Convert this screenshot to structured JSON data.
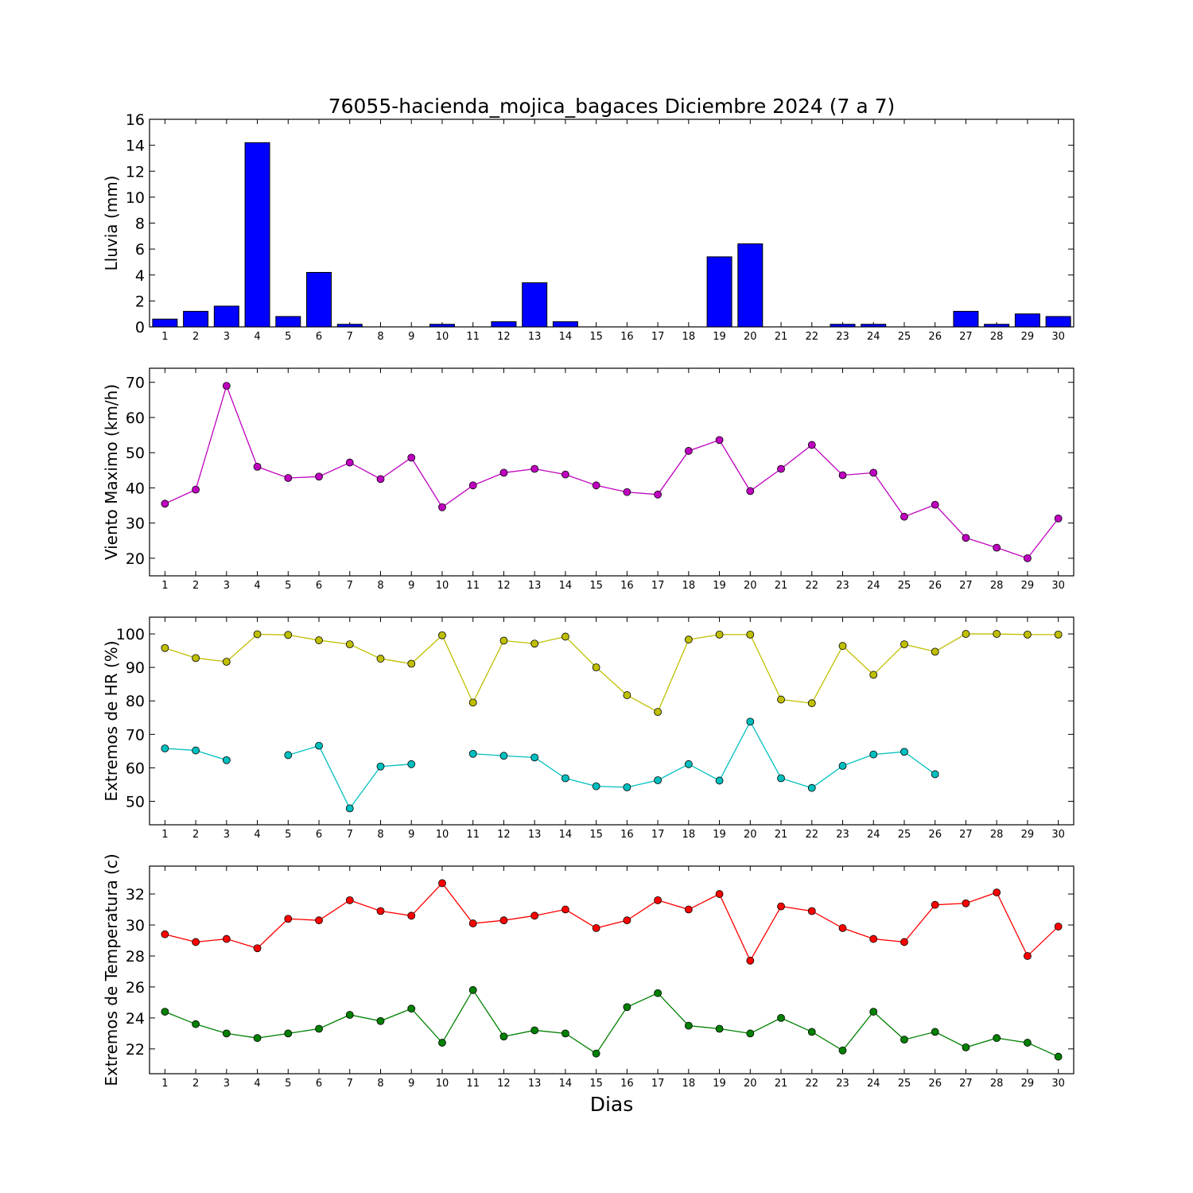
{
  "chart_data": {
    "title": "76055-hacienda_mojica_bagaces Diciembre 2024  (7 a 7)",
    "xlabel": "Dias",
    "x": [
      1,
      2,
      3,
      4,
      5,
      6,
      7,
      8,
      9,
      10,
      11,
      12,
      13,
      14,
      15,
      16,
      17,
      18,
      19,
      20,
      21,
      22,
      23,
      24,
      25,
      26,
      27,
      28,
      29,
      30
    ],
    "panels": [
      {
        "type": "bar",
        "ylabel": "Lluvia (mm)",
        "ylim": [
          0,
          16
        ],
        "yticks": [
          0,
          2,
          4,
          6,
          8,
          10,
          12,
          14,
          16
        ],
        "series": [
          {
            "color": "#0000ff",
            "values": [
              0.6,
              1.2,
              1.6,
              14.2,
              0.8,
              4.2,
              0.2,
              0,
              0,
              0.2,
              0,
              0.4,
              3.4,
              0.4,
              0,
              0,
              0,
              0,
              5.4,
              6.4,
              0,
              0,
              0.2,
              0.2,
              0,
              0,
              1.2,
              0.2,
              1.0,
              0.8
            ]
          }
        ]
      },
      {
        "type": "line",
        "ylabel": "Viento Maximo (km/h)",
        "ylim": [
          15,
          74
        ],
        "yticks": [
          20,
          30,
          40,
          50,
          60,
          70
        ],
        "series": [
          {
            "color": "#bf00bf",
            "values": [
              35.5,
              39.5,
              69,
              46,
              42.8,
              43.2,
              47.2,
              42.5,
              48.6,
              34.5,
              40.7,
              44.3,
              45.4,
              43.8,
              40.7,
              38.8,
              38.1,
              50.5,
              53.6,
              39.1,
              45.4,
              52.2,
              43.6,
              44.3,
              31.8,
              35.2,
              25.8,
              23,
              20,
              31.3
            ]
          }
        ]
      },
      {
        "type": "line",
        "ylabel": "Extremos de HR (%)",
        "ylim": [
          43,
          105
        ],
        "yticks": [
          50,
          60,
          70,
          80,
          90,
          100
        ],
        "series": [
          {
            "color": "#bfbf00",
            "values": [
              95.8,
              92.8,
              91.7,
              99.9,
              99.7,
              98.1,
              96.9,
              92.6,
              91.1,
              99.6,
              79.5,
              98.0,
              97.1,
              99.2,
              90.0,
              81.7,
              76.7,
              98.3,
              99.8,
              99.8,
              80.4,
              79.3,
              96.4,
              87.8,
              96.9,
              94.7,
              100,
              100,
              99.8,
              99.8
            ]
          },
          {
            "color": "#00bfbf",
            "values": [
              65.8,
              65.2,
              62.3,
              null,
              63.8,
              66.6,
              47.9,
              60.4,
              61.1,
              null,
              64.2,
              63.6,
              63.1,
              56.9,
              54.5,
              54.2,
              56.3,
              61.1,
              56.2,
              73.8,
              56.9,
              54.0,
              60.6,
              64.0,
              64.8,
              58.1,
              null,
              null,
              null,
              null
            ]
          }
        ]
      },
      {
        "type": "line",
        "ylabel": "Extremos de Temperatura (c)",
        "ylim": [
          20.4,
          33.8
        ],
        "yticks": [
          22,
          24,
          26,
          28,
          30,
          32
        ],
        "series": [
          {
            "color": "#ff0000",
            "values": [
              29.4,
              28.9,
              29.1,
              28.5,
              30.4,
              30.3,
              31.6,
              30.9,
              30.6,
              32.7,
              30.1,
              30.3,
              30.6,
              31.0,
              29.8,
              30.3,
              31.6,
              31.0,
              32.0,
              27.7,
              31.2,
              30.9,
              29.8,
              29.1,
              28.9,
              31.3,
              31.4,
              32.1,
              28.0,
              29.9
            ]
          },
          {
            "color": "#008000",
            "values": [
              24.4,
              23.6,
              23.0,
              22.7,
              23.0,
              23.3,
              24.2,
              23.8,
              24.6,
              22.4,
              25.8,
              22.8,
              23.2,
              23.0,
              21.7,
              24.7,
              25.6,
              23.5,
              23.3,
              23.0,
              24.0,
              23.1,
              21.9,
              24.4,
              22.6,
              23.1,
              22.1,
              22.7,
              22.4,
              21.5
            ]
          }
        ]
      }
    ]
  }
}
